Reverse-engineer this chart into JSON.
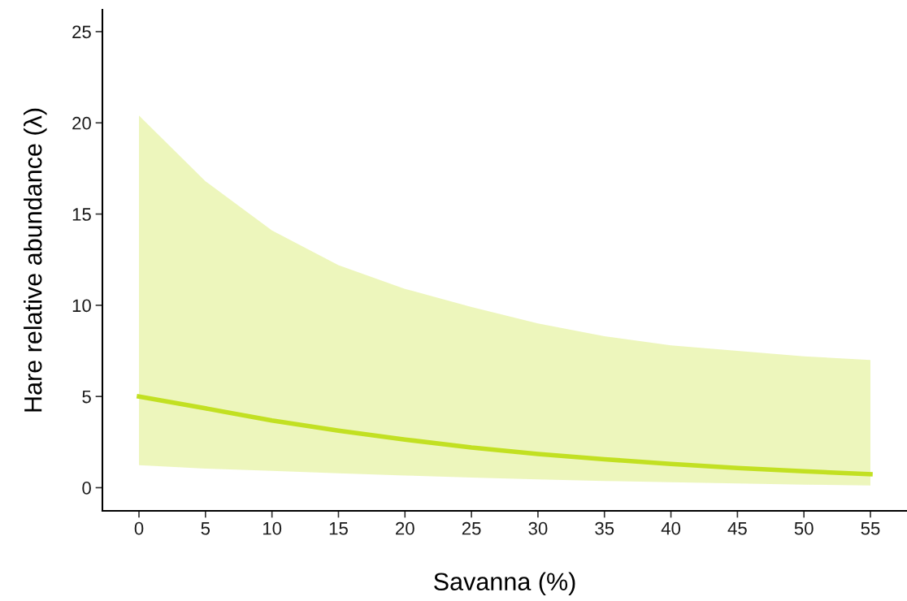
{
  "chart_data": {
    "type": "line",
    "xlabel": "Savanna (%)",
    "ylabel": "Hare relative abundance (λ)",
    "x": [
      0,
      5,
      10,
      15,
      20,
      25,
      30,
      35,
      40,
      45,
      50,
      55
    ],
    "series": [
      {
        "color": "#c2e022",
        "values": [
          5.0,
          4.35,
          3.68,
          3.13,
          2.64,
          2.2,
          1.85,
          1.56,
          1.3,
          1.08,
          0.9,
          0.74
        ],
        "lower": [
          1.23,
          1.05,
          0.92,
          0.79,
          0.67,
          0.55,
          0.45,
          0.37,
          0.3,
          0.23,
          0.17,
          0.12
        ],
        "upper": [
          20.4,
          16.8,
          14.1,
          12.2,
          10.9,
          9.9,
          9.0,
          8.3,
          7.8,
          7.5,
          7.2,
          7.0
        ]
      }
    ],
    "xlim": [
      -2.75,
      57.75
    ],
    "ylim": [
      -1.27,
      26.2
    ],
    "xticks": [
      0,
      5,
      10,
      15,
      20,
      25,
      30,
      35,
      40,
      45,
      50,
      55
    ],
    "yticks": [
      0,
      5,
      10,
      15,
      20,
      25
    ],
    "grid": false,
    "legend": false,
    "marker": "none",
    "line_style": "solid"
  }
}
